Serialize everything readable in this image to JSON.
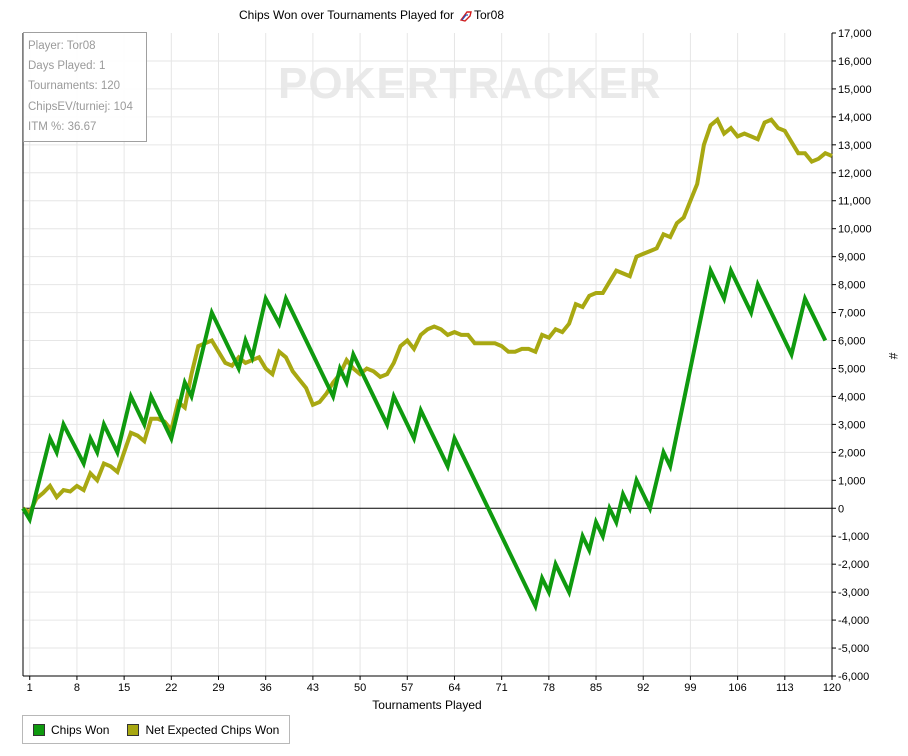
{
  "chart_data": {
    "type": "line",
    "title": "Chips Won over Tournaments Played for",
    "title_player": "Tor08",
    "watermark": "POKERTRACKER",
    "xlabel": "Tournaments Played",
    "ylabel": "#",
    "xlim": [
      0,
      120
    ],
    "ylim": [
      -6000,
      17000
    ],
    "x_ticks": [
      "1",
      "8",
      "15",
      "22",
      "29",
      "36",
      "43",
      "50",
      "57",
      "64",
      "71",
      "78",
      "85",
      "92",
      "99",
      "106",
      "113",
      "120"
    ],
    "y_ticks": [
      "17,000",
      "16,000",
      "15,000",
      "14,000",
      "13,000",
      "12,000",
      "11,000",
      "10,000",
      "9,000",
      "8,000",
      "7,000",
      "6,000",
      "5,000",
      "4,000",
      "3,000",
      "2,000",
      "1,000",
      "0",
      "-1,000",
      "-2,000",
      "-3,000",
      "-4,000",
      "-5,000",
      "-6,000"
    ],
    "grid": true,
    "legend_position": "bottom-left",
    "series": [
      {
        "name": "Chips Won",
        "color": "#0f9a0f",
        "points": [
          [
            0,
            0
          ],
          [
            1,
            -400
          ],
          [
            2,
            600
          ],
          [
            4,
            2500
          ],
          [
            5,
            2000
          ],
          [
            6,
            3000
          ],
          [
            9,
            1600
          ],
          [
            10,
            2500
          ],
          [
            11,
            2000
          ],
          [
            12,
            3000
          ],
          [
            14,
            2000
          ],
          [
            16,
            4000
          ],
          [
            18,
            3000
          ],
          [
            19,
            4000
          ],
          [
            22,
            2500
          ],
          [
            24,
            4500
          ],
          [
            25,
            4000
          ],
          [
            28,
            7000
          ],
          [
            32,
            5000
          ],
          [
            33,
            6000
          ],
          [
            34,
            5400
          ],
          [
            36,
            7500
          ],
          [
            38,
            6600
          ],
          [
            39,
            7500
          ],
          [
            46,
            4000
          ],
          [
            47,
            5000
          ],
          [
            48,
            4500
          ],
          [
            49,
            5500
          ],
          [
            54,
            3000
          ],
          [
            55,
            4000
          ],
          [
            58,
            2500
          ],
          [
            59,
            3500
          ],
          [
            63,
            1500
          ],
          [
            64,
            2500
          ],
          [
            76,
            -3500
          ],
          [
            77,
            -2500
          ],
          [
            78,
            -3000
          ],
          [
            79,
            -2000
          ],
          [
            81,
            -3000
          ],
          [
            83,
            -1000
          ],
          [
            84,
            -1500
          ],
          [
            85,
            -500
          ],
          [
            86,
            -1000
          ],
          [
            87,
            0
          ],
          [
            88,
            -500
          ],
          [
            89,
            500
          ],
          [
            90,
            0
          ],
          [
            91,
            1000
          ],
          [
            93,
            0
          ],
          [
            95,
            2000
          ],
          [
            96,
            1500
          ],
          [
            102,
            8500
          ],
          [
            104,
            7500
          ],
          [
            105,
            8500
          ],
          [
            108,
            7000
          ],
          [
            109,
            8000
          ],
          [
            114,
            5500
          ],
          [
            116,
            7500
          ],
          [
            119,
            6000
          ]
        ]
      },
      {
        "name": "Net Expected Chips Won",
        "color": "#a8a812",
        "points": [
          [
            0,
            0
          ],
          [
            1,
            -150
          ],
          [
            2,
            350
          ],
          [
            3,
            550
          ],
          [
            4,
            800
          ],
          [
            5,
            400
          ],
          [
            6,
            650
          ],
          [
            7,
            600
          ],
          [
            8,
            800
          ],
          [
            9,
            650
          ],
          [
            10,
            1250
          ],
          [
            11,
            1000
          ],
          [
            12,
            1600
          ],
          [
            13,
            1500
          ],
          [
            14,
            1300
          ],
          [
            15,
            2000
          ],
          [
            16,
            2700
          ],
          [
            17,
            2600
          ],
          [
            18,
            2400
          ],
          [
            19,
            3200
          ],
          [
            20,
            3200
          ],
          [
            21,
            3100
          ],
          [
            22,
            2800
          ],
          [
            23,
            3800
          ],
          [
            24,
            3600
          ],
          [
            25,
            4800
          ],
          [
            26,
            5800
          ],
          [
            27,
            5900
          ],
          [
            28,
            6000
          ],
          [
            29,
            5600
          ],
          [
            30,
            5200
          ],
          [
            31,
            5100
          ],
          [
            32,
            5400
          ],
          [
            33,
            5200
          ],
          [
            34,
            5300
          ],
          [
            35,
            5400
          ],
          [
            36,
            5000
          ],
          [
            37,
            4800
          ],
          [
            38,
            5600
          ],
          [
            39,
            5400
          ],
          [
            40,
            4900
          ],
          [
            41,
            4600
          ],
          [
            42,
            4300
          ],
          [
            43,
            3700
          ],
          [
            44,
            3800
          ],
          [
            45,
            4100
          ],
          [
            46,
            4500
          ],
          [
            47,
            4800
          ],
          [
            48,
            5300
          ],
          [
            49,
            5000
          ],
          [
            50,
            4800
          ],
          [
            51,
            5000
          ],
          [
            52,
            4900
          ],
          [
            53,
            4700
          ],
          [
            54,
            4800
          ],
          [
            55,
            5200
          ],
          [
            56,
            5800
          ],
          [
            57,
            6000
          ],
          [
            58,
            5700
          ],
          [
            59,
            6200
          ],
          [
            60,
            6400
          ],
          [
            61,
            6500
          ],
          [
            62,
            6400
          ],
          [
            63,
            6200
          ],
          [
            64,
            6300
          ],
          [
            65,
            6200
          ],
          [
            66,
            6200
          ],
          [
            67,
            5900
          ],
          [
            68,
            5900
          ],
          [
            69,
            5900
          ],
          [
            70,
            5900
          ],
          [
            71,
            5800
          ],
          [
            72,
            5600
          ],
          [
            73,
            5600
          ],
          [
            74,
            5700
          ],
          [
            75,
            5700
          ],
          [
            76,
            5600
          ],
          [
            77,
            6200
          ],
          [
            78,
            6100
          ],
          [
            79,
            6400
          ],
          [
            80,
            6300
          ],
          [
            81,
            6600
          ],
          [
            82,
            7300
          ],
          [
            83,
            7200
          ],
          [
            84,
            7600
          ],
          [
            85,
            7700
          ],
          [
            86,
            7700
          ],
          [
            87,
            8100
          ],
          [
            88,
            8500
          ],
          [
            89,
            8400
          ],
          [
            90,
            8300
          ],
          [
            91,
            9000
          ],
          [
            92,
            9100
          ],
          [
            93,
            9200
          ],
          [
            94,
            9300
          ],
          [
            95,
            9800
          ],
          [
            96,
            9700
          ],
          [
            97,
            10200
          ],
          [
            98,
            10400
          ],
          [
            99,
            11000
          ],
          [
            100,
            11600
          ],
          [
            101,
            13000
          ],
          [
            102,
            13700
          ],
          [
            103,
            13900
          ],
          [
            104,
            13400
          ],
          [
            105,
            13600
          ],
          [
            106,
            13300
          ],
          [
            107,
            13400
          ],
          [
            108,
            13300
          ],
          [
            109,
            13200
          ],
          [
            110,
            13800
          ],
          [
            111,
            13900
          ],
          [
            112,
            13600
          ],
          [
            113,
            13500
          ],
          [
            114,
            13100
          ],
          [
            115,
            12700
          ],
          [
            116,
            12700
          ],
          [
            117,
            12400
          ],
          [
            118,
            12500
          ],
          [
            119,
            12700
          ],
          [
            120,
            12600
          ]
        ]
      }
    ]
  },
  "info_box": {
    "player": "Player: Tor08",
    "days": "Days Played: 1",
    "tournaments": "Tournaments: 120",
    "chipsev": "ChipsEV/turniej: 104",
    "itm": "ITM %: 36.67"
  }
}
